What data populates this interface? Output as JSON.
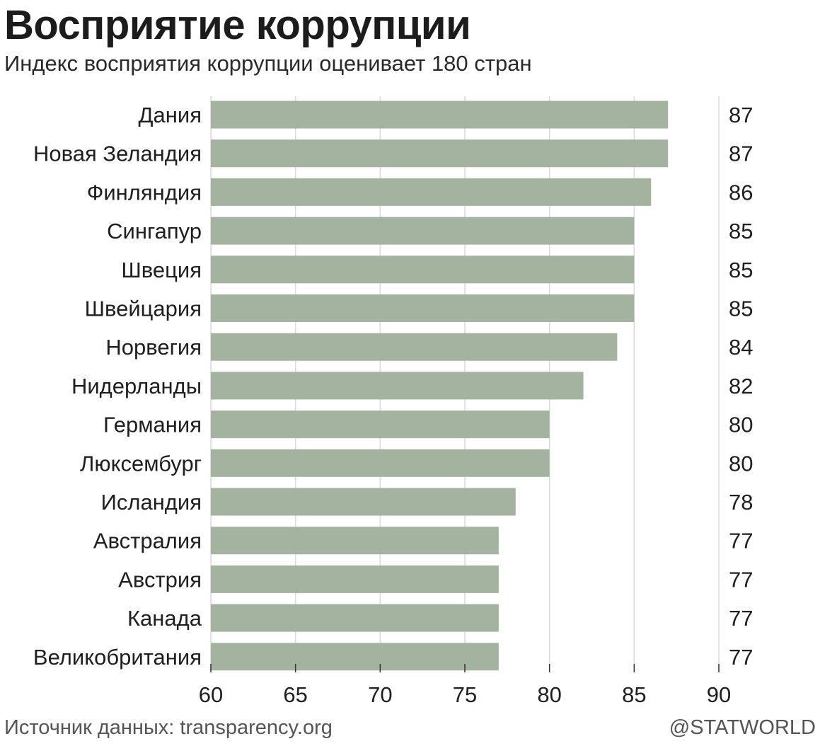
{
  "header": {
    "title": "Восприятие коррупции",
    "subtitle": "Индекс восприятия коррупции оценивает 180 стран"
  },
  "footer": {
    "source": "Источник данных: transparency.org",
    "brand": "@STATWORLD"
  },
  "colors": {
    "bar": "#a3b3a0",
    "grid": "#d9d9d9",
    "axis": "#333333",
    "text": "#1f1f1f"
  },
  "chart_data": {
    "type": "bar",
    "orientation": "horizontal",
    "title": "Восприятие коррупции",
    "subtitle": "Индекс восприятия коррупции оценивает 180 стран",
    "xlabel": "",
    "ylabel": "",
    "xlim": [
      60,
      90
    ],
    "xticks": [
      "60",
      "65",
      "70",
      "75",
      "80",
      "85",
      "90"
    ],
    "grid": true,
    "value_labels": "right-column",
    "categories": [
      "Дания",
      "Новая Зеландия",
      "Финляндия",
      "Сингапур",
      "Швеция",
      "Швейцария",
      "Норвегия",
      "Нидерланды",
      "Германия",
      "Люксембург",
      "Исландия",
      "Австралия",
      "Австрия",
      "Канада",
      "Великобритания"
    ],
    "values": [
      87,
      87,
      86,
      85,
      85,
      85,
      84,
      82,
      80,
      80,
      78,
      77,
      77,
      77,
      77
    ]
  }
}
